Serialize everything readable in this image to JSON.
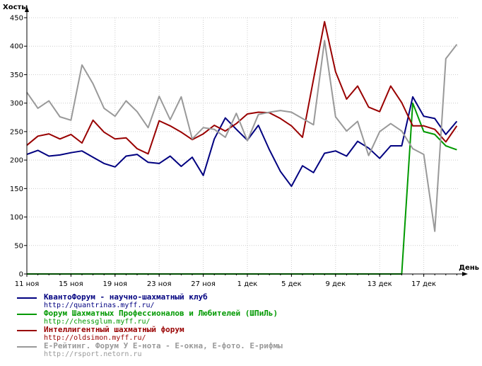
{
  "chart_data": {
    "type": "line",
    "ylabel": "Хосты",
    "xlabel": "День",
    "ylim": [
      0,
      450
    ],
    "yticks": [
      0,
      50,
      100,
      150,
      200,
      250,
      300,
      350,
      400,
      450
    ],
    "grid": true,
    "legend_position": "bottom",
    "x_tick_labels": [
      "11 ноя",
      "15 ноя",
      "19 ноя",
      "23 ноя",
      "27 ноя",
      "1 дек",
      "5 дек",
      "9 дек",
      "13 дек",
      "17 дек"
    ],
    "days": 40,
    "series": [
      {
        "name": "КвантоФорум - научно-шахматный клуб",
        "url": "http://quantrinas.myff.ru/",
        "color": "#000080",
        "values": [
          210,
          217,
          207,
          209,
          213,
          216,
          205,
          194,
          188,
          207,
          210,
          196,
          194,
          207,
          189,
          205,
          173,
          237,
          274,
          254,
          235,
          261,
          218,
          180,
          154,
          190,
          178,
          212,
          216,
          207,
          233,
          221,
          203,
          225,
          225,
          311,
          277,
          273,
          245,
          268
        ]
      },
      {
        "name": "Форум Шахматных Профессионалов и Любителей (ШПиЛь)",
        "url": "http://chessglum.myff.ru/",
        "color": "#009900",
        "values": [
          0,
          0,
          0,
          0,
          0,
          0,
          0,
          0,
          0,
          0,
          0,
          0,
          0,
          0,
          0,
          0,
          0,
          0,
          0,
          0,
          0,
          0,
          0,
          0,
          0,
          0,
          0,
          0,
          0,
          0,
          0,
          0,
          0,
          0,
          0,
          300,
          250,
          245,
          225,
          218
        ]
      },
      {
        "name": "Интеллигентный шахматный форум",
        "url": "http://oldsimon.myff.ru/",
        "color": "#990000",
        "values": [
          226,
          242,
          246,
          237,
          245,
          230,
          270,
          249,
          237,
          239,
          220,
          211,
          269,
          260,
          249,
          236,
          246,
          261,
          251,
          264,
          281,
          284,
          283,
          273,
          260,
          240,
          342,
          443,
          355,
          307,
          330,
          293,
          285,
          330,
          301,
          260,
          260,
          254,
          232,
          260
        ]
      },
      {
        "name": "Е-Рейтинг. Форум У Е-нота - Е-окна, Е-фото. Е-рифмы",
        "url": "http://rsport.netorn.ru",
        "color": "#999999",
        "values": [
          319,
          291,
          304,
          276,
          270,
          367,
          334,
          291,
          277,
          304,
          285,
          257,
          312,
          271,
          311,
          237,
          257,
          254,
          240,
          282,
          234,
          280,
          284,
          287,
          284,
          273,
          262,
          410,
          276,
          251,
          268,
          208,
          250,
          264,
          251,
          220,
          210,
          75,
          378,
          403
        ]
      }
    ]
  }
}
